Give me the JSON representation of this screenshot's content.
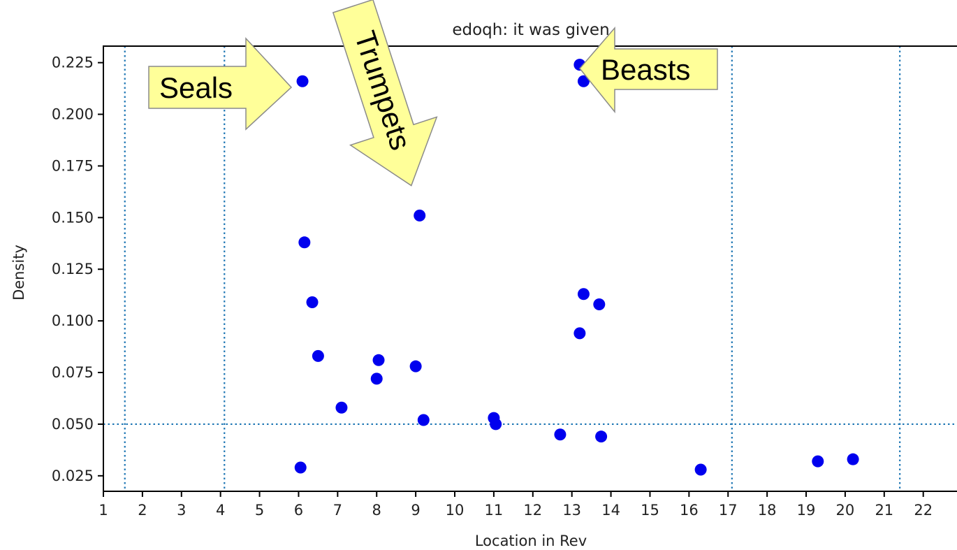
{
  "chart_data": {
    "type": "scatter",
    "title": "edoqh: it was given",
    "xlabel": "Location in Rev",
    "ylabel": "Density",
    "xlim": [
      1,
      22.9
    ],
    "ylim": [
      0.0175,
      0.233
    ],
    "y_ticks": [
      0.025,
      0.05,
      0.075,
      0.1,
      0.125,
      0.15,
      0.175,
      0.2,
      0.225
    ],
    "y_tick_labels": [
      "0.025",
      "0.050",
      "0.075",
      "0.100",
      "0.125",
      "0.150",
      "0.175",
      "0.200",
      "0.225"
    ],
    "x_ticks": [
      1,
      2,
      3,
      4,
      5,
      6,
      7,
      8,
      9,
      10,
      11,
      12,
      13,
      14,
      15,
      16,
      17,
      18,
      19,
      20,
      21,
      22
    ],
    "x_tick_labels": [
      "1",
      "2",
      "3",
      "4",
      "5",
      "6",
      "7",
      "8",
      "9",
      "10",
      "11",
      "12",
      "13",
      "14",
      "15",
      "16",
      "17",
      "18",
      "19",
      "20",
      "21",
      "22"
    ],
    "reference_lines": {
      "vertical_x": [
        1.55,
        4.1,
        17.1,
        21.4
      ],
      "horizontal_y": [
        0.05
      ],
      "style": "dotted",
      "color": "#1f77b4"
    },
    "point_color": "#0000ee",
    "grid": false,
    "points": [
      {
        "x": 6.1,
        "y": 0.216
      },
      {
        "x": 6.15,
        "y": 0.138
      },
      {
        "x": 6.35,
        "y": 0.109
      },
      {
        "x": 6.5,
        "y": 0.083
      },
      {
        "x": 6.05,
        "y": 0.029
      },
      {
        "x": 7.1,
        "y": 0.058
      },
      {
        "x": 8.05,
        "y": 0.081
      },
      {
        "x": 8.0,
        "y": 0.072
      },
      {
        "x": 9.0,
        "y": 0.078
      },
      {
        "x": 9.1,
        "y": 0.151
      },
      {
        "x": 9.2,
        "y": 0.052
      },
      {
        "x": 11.0,
        "y": 0.053
      },
      {
        "x": 11.05,
        "y": 0.05
      },
      {
        "x": 12.7,
        "y": 0.045
      },
      {
        "x": 13.2,
        "y": 0.224
      },
      {
        "x": 13.3,
        "y": 0.216
      },
      {
        "x": 13.3,
        "y": 0.113
      },
      {
        "x": 13.2,
        "y": 0.094
      },
      {
        "x": 13.7,
        "y": 0.108
      },
      {
        "x": 13.75,
        "y": 0.044
      },
      {
        "x": 16.3,
        "y": 0.028
      },
      {
        "x": 19.3,
        "y": 0.032
      },
      {
        "x": 20.2,
        "y": 0.033
      }
    ]
  },
  "annotations": {
    "seals": "Seals",
    "trumpets": "Trumpets",
    "beasts": "Beasts"
  }
}
